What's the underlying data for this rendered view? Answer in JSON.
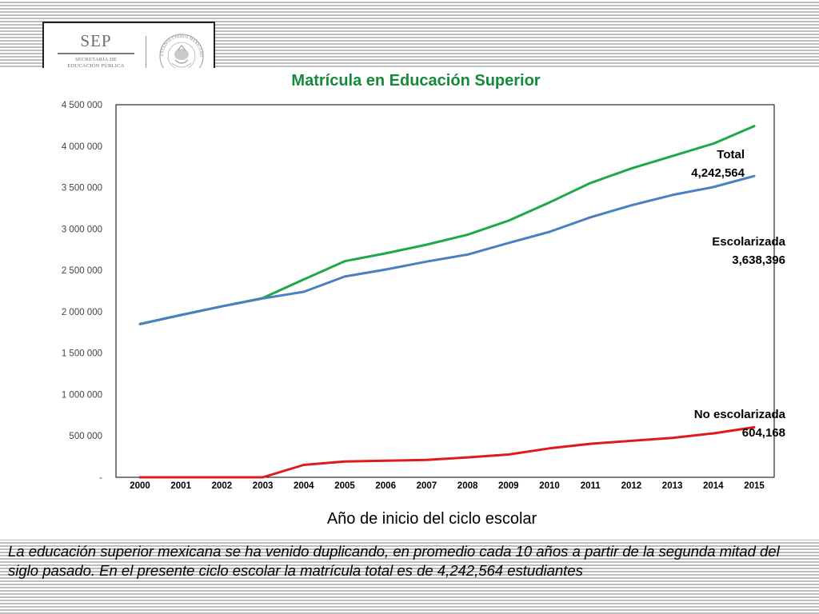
{
  "logo": {
    "mark": "SEP",
    "subtitle_line1": "SECRETARÍA DE",
    "subtitle_line2": "EDUCACIÓN PÚBLICA",
    "seal_text": "ESTADOS UNIDOS MEXICANOS"
  },
  "caption": "La educación superior mexicana se ha venido duplicando, en promedio cada 10 años a partir de la segunda mitad del siglo pasado. En el presente ciclo escolar la matrícula total es de 4,242,564 estudiantes",
  "chart_data": {
    "type": "line",
    "title": "Matrícula en Educación Superior",
    "xlabel": "Año de inicio del ciclo escolar",
    "ylabel": "",
    "categories": [
      "2000",
      "2001",
      "2002",
      "2003",
      "2004",
      "2005",
      "2006",
      "2007",
      "2008",
      "2009",
      "2010",
      "2011",
      "2012",
      "2013",
      "2014",
      "2015"
    ],
    "ylim": [
      0,
      4500000
    ],
    "yticks": [
      0,
      500000,
      1000000,
      1500000,
      2000000,
      2500000,
      3000000,
      3500000,
      4000000,
      4500000
    ],
    "ytick_labels": [
      "-",
      "500 000",
      "1 000 000",
      "1 500 000",
      "2 000 000",
      "2 500 000",
      "3 000 000",
      "3 500 000",
      "4 000 000",
      "4 500 000"
    ],
    "grid": false,
    "series": [
      {
        "name": "Total",
        "color": "#1ea84a",
        "values": [
          1850000,
          1960000,
          2065000,
          2165000,
          2390000,
          2610000,
          2705000,
          2810000,
          2930000,
          3100000,
          3320000,
          3555000,
          3730000,
          3880000,
          4030000,
          4242564
        ],
        "end_label_value": "4,242,564"
      },
      {
        "name": "Escolarizada",
        "color": "#4a7fc1",
        "values": [
          1850000,
          1960000,
          2065000,
          2160000,
          2240000,
          2425000,
          2510000,
          2605000,
          2690000,
          2830000,
          2965000,
          3140000,
          3285000,
          3410000,
          3505000,
          3638396
        ],
        "end_label_value": "3,638,396"
      },
      {
        "name": "No escolarizada",
        "color": "#e0191b",
        "values": [
          0,
          0,
          0,
          0,
          150000,
          190000,
          200000,
          210000,
          240000,
          275000,
          350000,
          405000,
          440000,
          475000,
          530000,
          604168
        ],
        "end_label_value": "604,168"
      }
    ]
  }
}
